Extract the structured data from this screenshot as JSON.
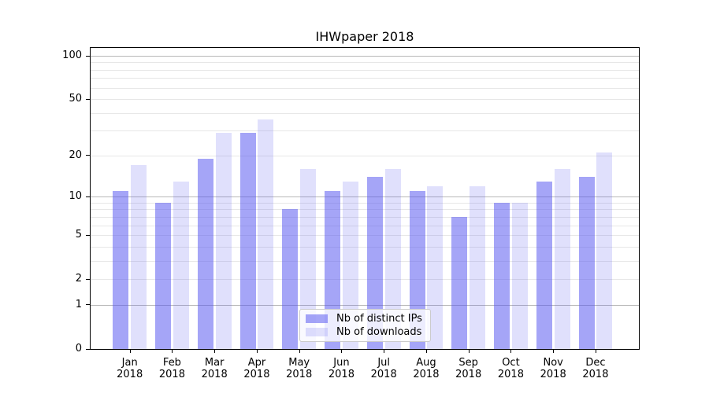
{
  "chart_data": {
    "type": "bar",
    "title": "IHWpaper 2018",
    "categories": [
      "Jan",
      "Feb",
      "Mar",
      "Apr",
      "May",
      "Jun",
      "Jul",
      "Aug",
      "Sep",
      "Oct",
      "Nov",
      "Dec"
    ],
    "year_label": "2018",
    "series": [
      {
        "name": "Nb of distinct IPs",
        "color": "rgba(88,88,240,0.54)",
        "values": [
          11,
          9,
          19,
          29,
          8,
          11,
          14,
          11,
          7,
          9,
          13,
          14
        ]
      },
      {
        "name": "Nb of downloads",
        "color": "rgba(88,88,240,0.19)",
        "values": [
          17,
          13,
          29,
          36,
          16,
          13,
          16,
          12,
          12,
          9,
          16,
          21
        ]
      }
    ],
    "y_axis": {
      "scale": "log10(value+1)",
      "tick_labels": [
        0,
        1,
        2,
        5,
        10,
        20,
        50,
        100
      ],
      "major_gridlines": [
        1,
        10,
        100
      ],
      "minor_gridlines": [
        2,
        3,
        4,
        5,
        6,
        7,
        8,
        9,
        20,
        30,
        40,
        50,
        60,
        70,
        80,
        90
      ],
      "range_top_value": 100
    },
    "grid": "horizontal",
    "legend_position": "lower center",
    "colors": {
      "major_grid": "#b8b8b8",
      "minor_grid": "#e7e7e7",
      "spine": "#000000"
    }
  }
}
